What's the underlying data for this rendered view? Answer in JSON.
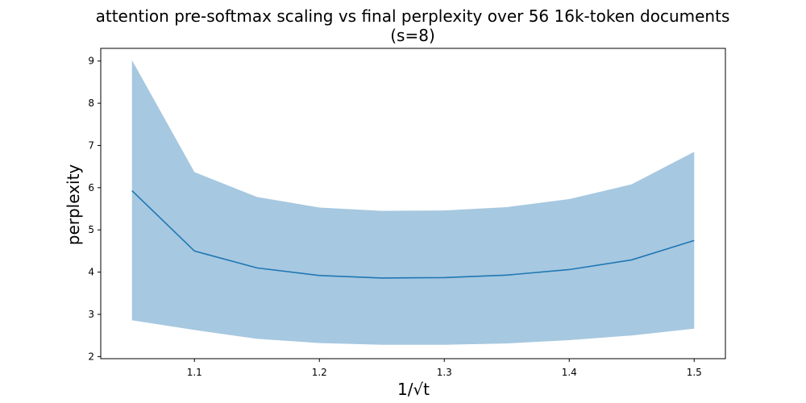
{
  "chart_data": {
    "type": "line",
    "title_line1": "attention pre-softmax scaling vs final perplexity over 56 16k-token documents",
    "title_line2": "(s=8)",
    "xlabel": "1/√t",
    "ylabel": "perplexity",
    "xlim": [
      1.025,
      1.525
    ],
    "ylim": [
      1.95,
      9.3
    ],
    "x_ticks": [
      1.1,
      1.2,
      1.3,
      1.4,
      1.5
    ],
    "x_tick_labels": [
      "1.1",
      "1.2",
      "1.3",
      "1.4",
      "1.5"
    ],
    "y_ticks": [
      2,
      3,
      4,
      5,
      6,
      7,
      8,
      9
    ],
    "y_tick_labels": [
      "2",
      "3",
      "4",
      "5",
      "6",
      "7",
      "8",
      "9"
    ],
    "grid": false,
    "x": [
      1.05,
      1.1,
      1.15,
      1.2,
      1.25,
      1.3,
      1.35,
      1.4,
      1.45,
      1.5
    ],
    "series": [
      {
        "values": [
          5.93,
          4.5,
          4.1,
          3.92,
          3.86,
          3.87,
          3.93,
          4.06,
          4.29,
          4.75
        ],
        "band_upper": [
          9.02,
          6.37,
          5.78,
          5.53,
          5.45,
          5.46,
          5.54,
          5.73,
          6.08,
          6.85
        ],
        "band_lower": [
          2.86,
          2.63,
          2.42,
          2.32,
          2.28,
          2.28,
          2.31,
          2.39,
          2.5,
          2.66
        ]
      }
    ],
    "colors": {
      "line": "#1f77b4",
      "band": "#a6c8e0"
    }
  }
}
